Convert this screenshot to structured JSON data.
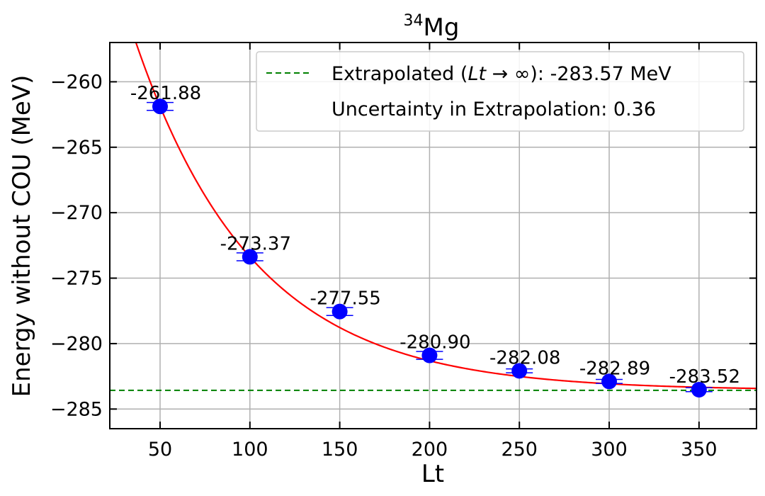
{
  "chart_data": {
    "type": "scatter",
    "title": {
      "superscript": "34",
      "text": "Mg"
    },
    "xlabel": "Lt",
    "ylabel": "Energy without COU (MeV)",
    "xlim": [
      22,
      382
    ],
    "ylim": [
      -286.5,
      -257.0
    ],
    "xticks": [
      50,
      100,
      150,
      200,
      250,
      300,
      350
    ],
    "yticks": [
      -285,
      -280,
      -275,
      -270,
      -265,
      -260
    ],
    "ytick_labels": [
      "−285",
      "−280",
      "−275",
      "−270",
      "−265",
      "−260"
    ],
    "grid": true,
    "points": [
      {
        "x": 50,
        "y": -261.88,
        "err": 0.3,
        "label": "-261.88"
      },
      {
        "x": 100,
        "y": -273.37,
        "err": 0.3,
        "label": "-273.37"
      },
      {
        "x": 150,
        "y": -277.55,
        "err": 0.3,
        "label": "-277.55"
      },
      {
        "x": 200,
        "y": -280.9,
        "err": 0.3,
        "label": "-280.90"
      },
      {
        "x": 250,
        "y": -282.08,
        "err": 0.15,
        "label": "-282.08"
      },
      {
        "x": 300,
        "y": -282.89,
        "err": 0.15,
        "label": "-282.89"
      },
      {
        "x": 350,
        "y": -283.52,
        "err": 0.15,
        "label": "-283.52"
      }
    ],
    "extrapolated_value": -283.57,
    "fit_curve": {
      "color": "#ff0000"
    },
    "point_color": "#0000ff",
    "extrapolation_line_color": "#008000",
    "legend": {
      "placement": "top-right",
      "extrapolated_prefix": "Extrapolated (",
      "extrapolated_math": "Lt",
      "extrapolated_arrow": " → ∞",
      "extrapolated_suffix": "): -283.57 MeV",
      "uncertainty_text": "Uncertainty in Extrapolation: 0.36"
    }
  }
}
